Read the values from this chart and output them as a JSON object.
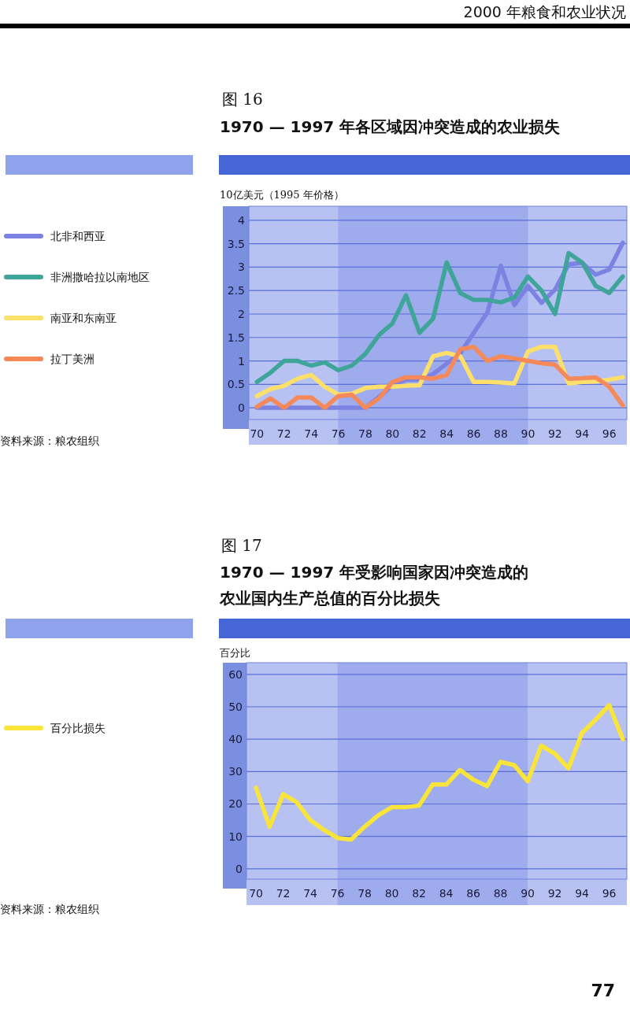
{
  "chart_data": [
    {
      "type": "line",
      "title": "1970 — 1997 年各区域因冲突造成的农业损失",
      "ylabel": "10亿美元（1995 年价格）",
      "annotations": [
        "图 16",
        "资料来源：粮农组织",
        "2000 年粮食和农业状况"
      ],
      "x": [
        1970,
        1971,
        1972,
        1973,
        1974,
        1975,
        1976,
        1977,
        1978,
        1979,
        1980,
        1981,
        1982,
        1983,
        1984,
        1985,
        1986,
        1987,
        1988,
        1989,
        1990,
        1991,
        1992,
        1993,
        1994,
        1995,
        1996,
        1997
      ],
      "series": [
        {
          "name": "北非和西亚",
          "color": "#7c82e2",
          "values": [
            0,
            0,
            0,
            0,
            0,
            0,
            0,
            0,
            0,
            0.23,
            0.48,
            0.6,
            0.6,
            0.72,
            0.94,
            1.16,
            1.6,
            2.03,
            3.03,
            2.19,
            2.6,
            2.24,
            2.52,
            3.06,
            3.09,
            2.84,
            2.95,
            3.52
          ]
        },
        {
          "name": "非洲撒哈拉以南地区",
          "color": "#3fa598",
          "values": [
            0.55,
            0.75,
            1.0,
            1.0,
            0.9,
            0.97,
            0.8,
            0.9,
            1.15,
            1.55,
            1.8,
            2.4,
            1.6,
            1.9,
            3.1,
            2.45,
            2.3,
            2.3,
            2.25,
            2.35,
            2.8,
            2.5,
            2.0,
            3.3,
            3.1,
            2.6,
            2.45,
            2.8
          ]
        },
        {
          "name": "南亚和东南亚",
          "color": "#fde06a",
          "values": [
            0.25,
            0.4,
            0.47,
            0.62,
            0.7,
            0.45,
            0.28,
            0.3,
            0.42,
            0.45,
            0.45,
            0.47,
            0.48,
            1.1,
            1.17,
            1.1,
            0.55,
            0.55,
            0.54,
            0.52,
            1.2,
            1.3,
            1.3,
            0.52,
            0.55,
            0.56,
            0.6,
            0.65
          ]
        },
        {
          "name": "拉丁美洲",
          "color": "#f5895a",
          "values": [
            0.02,
            0.2,
            0,
            0.22,
            0.22,
            0,
            0.25,
            0.28,
            0,
            0.2,
            0.55,
            0.65,
            0.65,
            0.62,
            0.7,
            1.25,
            1.3,
            1.0,
            1.1,
            1.05,
            1.0,
            0.95,
            0.92,
            0.62,
            0.63,
            0.65,
            0.45,
            0.05
          ]
        }
      ],
      "xlim": [
        1969.4,
        1997.3
      ],
      "ylim": [
        -0.25,
        4.3
      ],
      "xticks": [
        {
          "value": 1970,
          "label": "70"
        },
        {
          "value": 1972,
          "label": "72"
        },
        {
          "value": 1974,
          "label": "74"
        },
        {
          "value": 1976,
          "label": "76"
        },
        {
          "value": 1978,
          "label": "78"
        },
        {
          "value": 1980,
          "label": "80"
        },
        {
          "value": 1982,
          "label": "82"
        },
        {
          "value": 1984,
          "label": "84"
        },
        {
          "value": 1986,
          "label": "86"
        },
        {
          "value": 1988,
          "label": "88"
        },
        {
          "value": 1990,
          "label": "90"
        },
        {
          "value": 1992,
          "label": "92"
        },
        {
          "value": 1994,
          "label": "94"
        },
        {
          "value": 1996,
          "label": "96"
        }
      ],
      "yticks": [
        0,
        0.5,
        1,
        1.5,
        2,
        2.5,
        3,
        3.5,
        4
      ],
      "bands": [
        {
          "axis": "x",
          "from": 1976,
          "to": 1990,
          "color": "#9eabec"
        }
      ],
      "grid": "y",
      "legend": "left"
    },
    {
      "type": "line",
      "title": "1970 — 1997 年受影响国家因冲突造成的农业国内生产总值的百分比损失",
      "ylabel": "百分比",
      "annotations": [
        "图 17",
        "资料来源：粮农组织",
        "77"
      ],
      "x": [
        1970,
        1971,
        1972,
        1973,
        1974,
        1975,
        1976,
        1977,
        1978,
        1979,
        1980,
        1981,
        1982,
        1983,
        1984,
        1985,
        1986,
        1987,
        1988,
        1989,
        1990,
        1991,
        1992,
        1993,
        1994,
        1995,
        1996,
        1997
      ],
      "series": [
        {
          "name": "百分比损失",
          "color": "#f9e53a",
          "values": [
            25,
            13,
            23,
            20.5,
            15,
            12,
            9.5,
            9,
            13,
            16.5,
            19,
            19,
            19.5,
            26,
            26,
            30.5,
            27.5,
            25.5,
            33,
            32,
            27,
            38,
            35.5,
            31,
            42,
            46,
            50.5,
            40
          ]
        }
      ],
      "xlim": [
        1969.3,
        1997.3
      ],
      "ylim": [
        -3.2,
        63.6
      ],
      "xticks": [
        {
          "value": 1970,
          "label": "70"
        },
        {
          "value": 1972,
          "label": "72"
        },
        {
          "value": 1974,
          "label": "74"
        },
        {
          "value": 1976,
          "label": "76"
        },
        {
          "value": 1978,
          "label": "78"
        },
        {
          "value": 1980,
          "label": "80"
        },
        {
          "value": 1982,
          "label": "82"
        },
        {
          "value": 1984,
          "label": "84"
        },
        {
          "value": 1986,
          "label": "86"
        },
        {
          "value": 1988,
          "label": "88"
        },
        {
          "value": 1990,
          "label": "90"
        },
        {
          "value": 1992,
          "label": "92"
        },
        {
          "value": 1994,
          "label": "94"
        },
        {
          "value": 1996,
          "label": "96"
        }
      ],
      "yticks": [
        0,
        10,
        20,
        30,
        40,
        50,
        60
      ],
      "bands": [
        {
          "axis": "x",
          "from": 1976,
          "to": 1990,
          "color": "#9eabec"
        }
      ],
      "grid": "y",
      "legend": "left"
    }
  ]
}
